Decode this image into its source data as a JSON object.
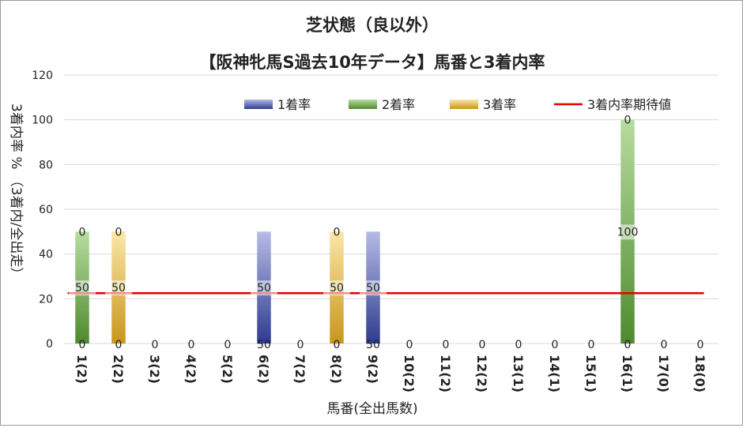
{
  "chart_data": {
    "type": "bar",
    "title": "芝状態（良以外）",
    "subtitle": "【阪神牝馬S過去10年データ】馬番と3着内率",
    "xlabel": "馬番(全出馬数)",
    "ylabel": "3着内率 %  （3着内/全出走）",
    "ylim": [
      0,
      120
    ],
    "yticks": [
      0,
      20,
      40,
      60,
      80,
      100,
      120
    ],
    "grid": true,
    "legend_position": "top",
    "stacked": true,
    "categories": [
      "1(2)",
      "2(2)",
      "3(2)",
      "4(2)",
      "5(2)",
      "6(2)",
      "7(2)",
      "8(2)",
      "9(2)",
      "10(2)",
      "11(2)",
      "12(2)",
      "13(1)",
      "14(1)",
      "15(1)",
      "16(1)",
      "17(0)",
      "18(0)"
    ],
    "series": [
      {
        "name": "1着率",
        "color": "#2e3b8f",
        "values": [
          0,
          0,
          0,
          0,
          0,
          50,
          0,
          0,
          50,
          0,
          0,
          0,
          0,
          0,
          0,
          0,
          0,
          0
        ]
      },
      {
        "name": "2着率",
        "color": "#4f8a2e",
        "values": [
          50,
          0,
          0,
          0,
          0,
          0,
          0,
          0,
          0,
          0,
          0,
          0,
          0,
          0,
          0,
          100,
          0,
          0
        ]
      },
      {
        "name": "3着率",
        "color": "#c8961a",
        "values": [
          0,
          50,
          0,
          0,
          0,
          0,
          0,
          50,
          0,
          0,
          0,
          0,
          0,
          0,
          0,
          0,
          0,
          0
        ]
      }
    ],
    "reference_line": {
      "name": "3着内率期待値",
      "color": "#e00000",
      "value": 22.5
    }
  }
}
